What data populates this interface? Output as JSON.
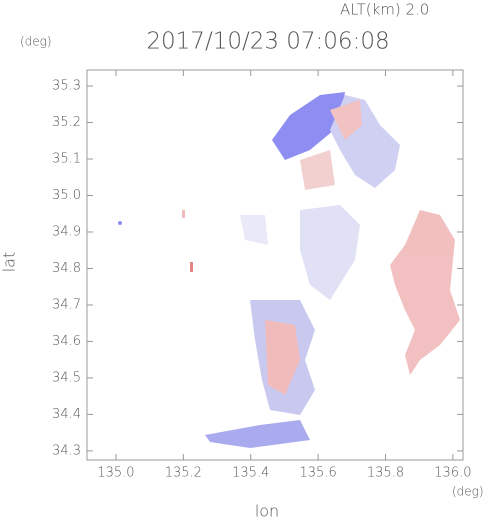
{
  "chart_data": {
    "type": "map",
    "title": "2017/10/23 07:06:08",
    "altitude_label": "ALT(km) 2.0",
    "y_unit": "(deg)",
    "x_unit": "(deg)",
    "x_label": "lon",
    "y_label": "lat",
    "xlim": [
      134.914,
      136.03
    ],
    "ylim": [
      34.275,
      35.344
    ],
    "xticks": [
      {
        "value": 135,
        "label": "135.0"
      },
      135.2,
      135.4,
      135.6,
      135.8,
      {
        "value": 136,
        "label": "136.0"
      }
    ],
    "yticks": [
      34.3,
      34.4,
      34.5,
      34.6,
      34.7,
      34.8,
      34.9,
      {
        "value": 35,
        "label": "35.0"
      },
      35.1,
      35.2,
      35.3
    ]
  }
}
